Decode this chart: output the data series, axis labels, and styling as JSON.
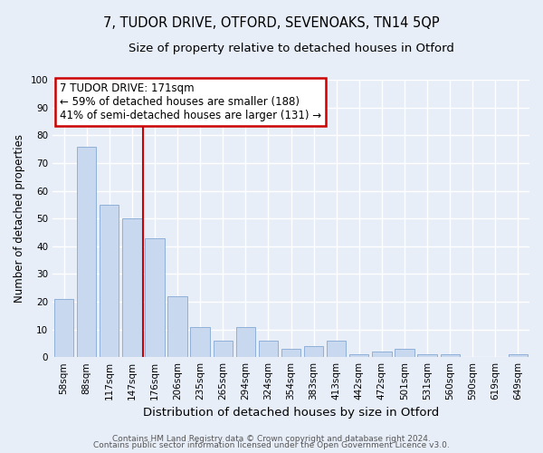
{
  "title": "7, TUDOR DRIVE, OTFORD, SEVENOAKS, TN14 5QP",
  "subtitle": "Size of property relative to detached houses in Otford",
  "xlabel": "Distribution of detached houses by size in Otford",
  "ylabel": "Number of detached properties",
  "bar_labels": [
    "58sqm",
    "88sqm",
    "117sqm",
    "147sqm",
    "176sqm",
    "206sqm",
    "235sqm",
    "265sqm",
    "294sqm",
    "324sqm",
    "354sqm",
    "383sqm",
    "413sqm",
    "442sqm",
    "472sqm",
    "501sqm",
    "531sqm",
    "560sqm",
    "590sqm",
    "619sqm",
    "649sqm"
  ],
  "bar_values": [
    21,
    76,
    55,
    50,
    43,
    22,
    11,
    6,
    11,
    6,
    3,
    4,
    6,
    1,
    2,
    3,
    1,
    1,
    0,
    0,
    1
  ],
  "bar_color": "#c8d8ee",
  "bar_edge_color": "#90b0d8",
  "vline_color": "#cc0000",
  "vline_position": 3.5,
  "annotation_title": "7 TUDOR DRIVE: 171sqm",
  "annotation_line1": "← 59% of detached houses are smaller (188)",
  "annotation_line2": "41% of semi-detached houses are larger (131) →",
  "annotation_box_facecolor": "#ffffff",
  "annotation_box_edgecolor": "#cc0000",
  "ylim": [
    0,
    100
  ],
  "yticks": [
    0,
    10,
    20,
    30,
    40,
    50,
    60,
    70,
    80,
    90,
    100
  ],
  "footer1": "Contains HM Land Registry data © Crown copyright and database right 2024.",
  "footer2": "Contains public sector information licensed under the Open Government Licence v3.0.",
  "fig_bg": "#e8eef8",
  "plot_bg": "#e8eef8",
  "grid_color": "#ffffff",
  "title_fontsize": 10.5,
  "subtitle_fontsize": 9.5,
  "xlabel_fontsize": 9.5,
  "ylabel_fontsize": 8.5,
  "tick_fontsize": 7.5,
  "annotation_fontsize": 8.5,
  "footer_fontsize": 6.5
}
